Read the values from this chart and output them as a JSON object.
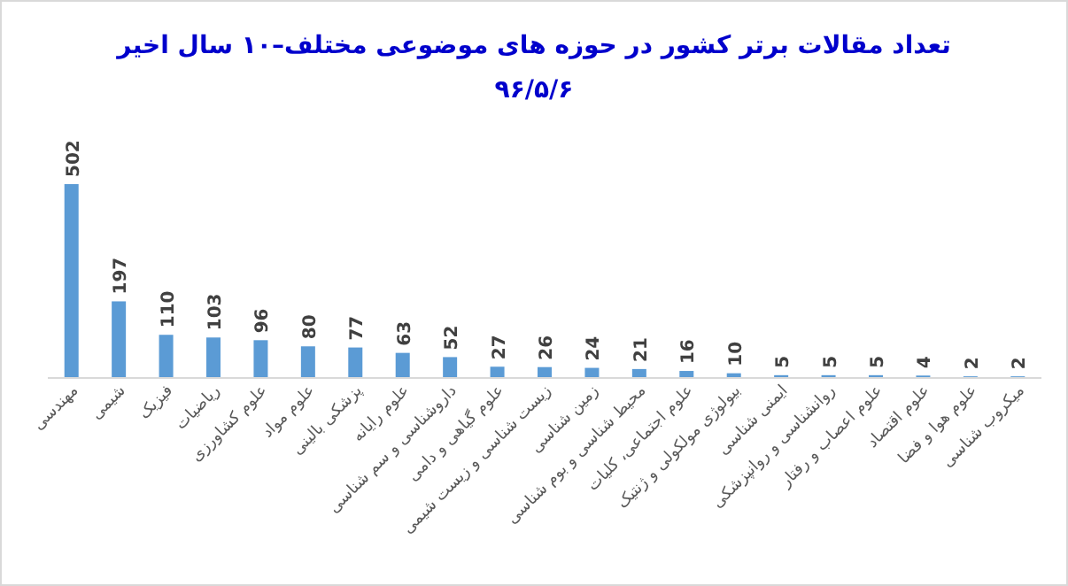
{
  "chart_data": {
    "type": "bar",
    "title": "تعداد مقالات برتر کشور  در حوزه های موضوعی مختلف–۱۰ سال اخیر",
    "subtitle": "۹۶/۵/۶",
    "categories": [
      "مهندسی",
      "شیمی",
      "فیزیک",
      "ریاضیات",
      "علوم کشاورزی",
      "علوم مواد",
      "پزشکی بالینی",
      "علوم رایانه",
      "داروشناسی و سم شناسی",
      "علوم گیاهی و دامی",
      "زیست شناسی و زیست شیمی",
      "زمین شناسی",
      "محیط شناسی و بوم شناسی",
      "علوم اجتماعی، کلیات",
      "بیولوژی مولکولی و ژنتیک",
      "ایمنی شناسی",
      "روانشناسی و روانپزشکی",
      "علوم اعصاب و رفتار",
      "علوم اقتصاد",
      "علوم هوا و فضا",
      "میکروب شناسی"
    ],
    "values": [
      502,
      197,
      110,
      103,
      96,
      80,
      77,
      63,
      52,
      27,
      26,
      24,
      21,
      16,
      10,
      5,
      5,
      5,
      4,
      2,
      2
    ],
    "color": "#5b9bd5",
    "data_labels": true
  }
}
